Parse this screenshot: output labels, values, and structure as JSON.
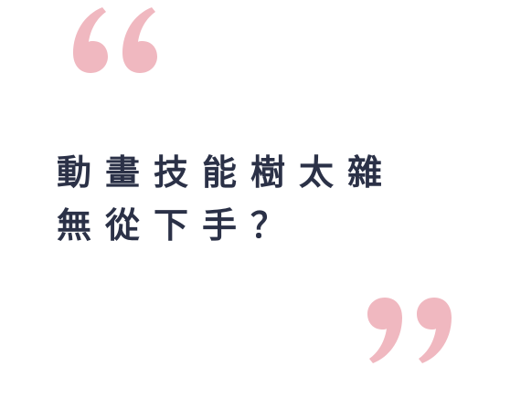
{
  "headline": {
    "line1": "動畫技能樹太雜",
    "line2": "無從下手？"
  },
  "colors": {
    "text": "#2b3147",
    "quote_mark": "#f0b8c0",
    "background": "#ffffff"
  },
  "icons": {
    "open_quote": "open-quote-icon",
    "close_quote": "close-quote-icon"
  }
}
